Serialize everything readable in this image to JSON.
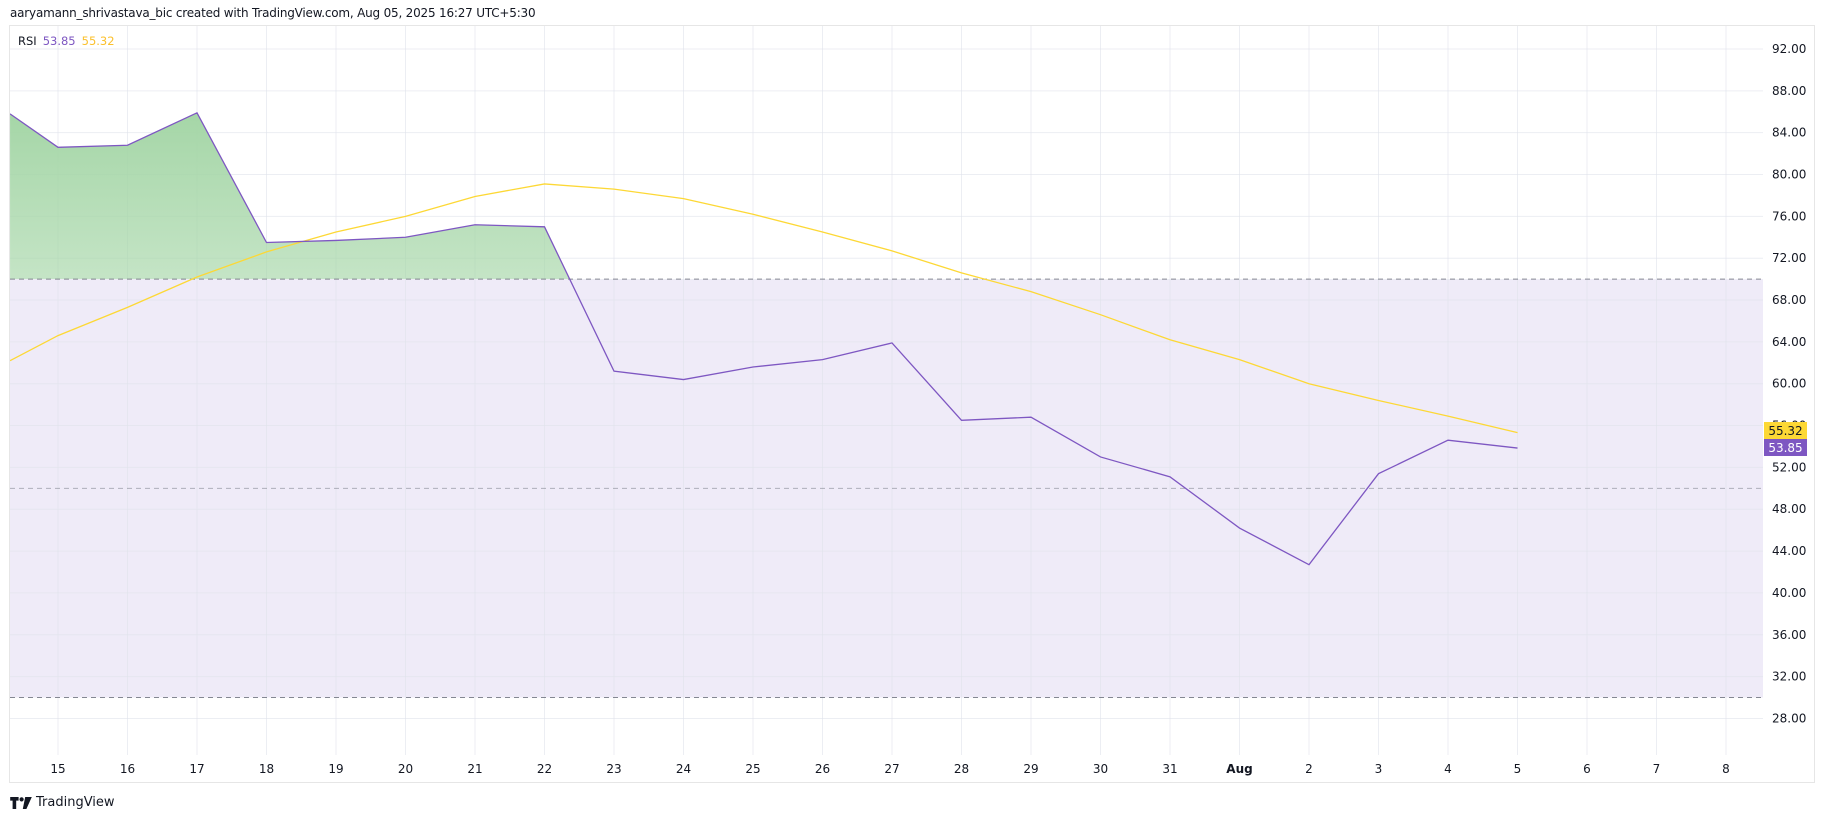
{
  "header": {
    "attribution": "aaryamann_shrivastava_bic created with TradingView.com, Aug 05, 2025 16:27 UTC+5:30"
  },
  "legend": {
    "indicator": "RSI",
    "rsi_value": "53.85",
    "ma_value": "55.32"
  },
  "colors": {
    "rsi_line": "#7e57c2",
    "ma_line": "#fdd835",
    "band_fill": "#efebf8",
    "overbought_fill": "#a5d6a7",
    "grid": "#f0f0f3",
    "dash": "#787b86"
  },
  "price_tags": {
    "ma": "55.32",
    "rsi": "53.85"
  },
  "footer": {
    "brand": "TradingView"
  },
  "chart_data": {
    "type": "line",
    "title": "RSI",
    "x": [
      "Jul 14",
      "Jul 15",
      "Jul 16",
      "Jul 17",
      "Jul 18",
      "Jul 19",
      "Jul 20",
      "Jul 21",
      "Jul 22",
      "Jul 23",
      "Jul 24",
      "Jul 25",
      "Jul 26",
      "Jul 27",
      "Jul 28",
      "Jul 29",
      "Jul 30",
      "Jul 31",
      "Aug 1",
      "Aug 2",
      "Aug 3",
      "Aug 4",
      "Aug 5"
    ],
    "x_offset_days": [
      -0.69,
      0,
      1,
      2,
      3,
      4,
      5,
      6,
      7,
      8,
      9,
      10,
      11,
      12,
      13,
      14,
      15,
      16,
      17,
      18,
      19,
      20,
      21
    ],
    "series": [
      {
        "name": "RSI",
        "color": "#7e57c2",
        "values": [
          85.8,
          82.6,
          82.8,
          85.9,
          73.5,
          73.7,
          74.0,
          75.2,
          75.0,
          61.2,
          60.4,
          61.6,
          62.3,
          63.9,
          56.5,
          56.8,
          53.0,
          51.1,
          46.2,
          42.7,
          51.4,
          54.6,
          53.85
        ]
      },
      {
        "name": "RSI-based MA",
        "color": "#fdd835",
        "values": [
          62.2,
          64.6,
          67.3,
          70.2,
          72.6,
          74.5,
          76.0,
          77.9,
          79.1,
          78.6,
          77.7,
          76.2,
          74.5,
          72.7,
          70.6,
          68.8,
          66.6,
          64.2,
          62.3,
          60.0,
          58.4,
          56.9,
          55.32
        ]
      }
    ],
    "bands": {
      "upper": 70,
      "middle": 50,
      "lower": 30
    },
    "xlabels": [
      {
        "label": "15",
        "d": 0
      },
      {
        "label": "16",
        "d": 1
      },
      {
        "label": "17",
        "d": 2
      },
      {
        "label": "18",
        "d": 3
      },
      {
        "label": "19",
        "d": 4
      },
      {
        "label": "20",
        "d": 5
      },
      {
        "label": "21",
        "d": 6
      },
      {
        "label": "22",
        "d": 7
      },
      {
        "label": "23",
        "d": 8
      },
      {
        "label": "24",
        "d": 9
      },
      {
        "label": "25",
        "d": 10
      },
      {
        "label": "26",
        "d": 11
      },
      {
        "label": "27",
        "d": 12
      },
      {
        "label": "28",
        "d": 13
      },
      {
        "label": "29",
        "d": 14
      },
      {
        "label": "30",
        "d": 15
      },
      {
        "label": "31",
        "d": 16
      },
      {
        "label": "Aug",
        "d": 17,
        "bold": true
      },
      {
        "label": "2",
        "d": 18
      },
      {
        "label": "3",
        "d": 19
      },
      {
        "label": "4",
        "d": 20
      },
      {
        "label": "5",
        "d": 21
      },
      {
        "label": "6",
        "d": 22
      },
      {
        "label": "7",
        "d": 23
      },
      {
        "label": "8",
        "d": 24
      }
    ],
    "yticks": [
      "92.00",
      "88.00",
      "84.00",
      "80.00",
      "76.00",
      "72.00",
      "68.00",
      "64.00",
      "60.00",
      "56.00",
      "52.00",
      "48.00",
      "44.00",
      "40.00",
      "36.00",
      "32.00",
      "28.00"
    ],
    "ylim": [
      24.5,
      94.5
    ],
    "xlabel": "",
    "ylabel": "",
    "grid": true,
    "legend_position": "top-left"
  }
}
